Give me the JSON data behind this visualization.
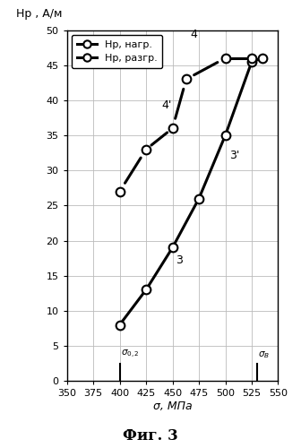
{
  "title_y": "Нр , А/м",
  "xlabel": "σ, МПа",
  "figcaption": "Фиг. 3",
  "xlim": [
    350,
    550
  ],
  "ylim": [
    0,
    50
  ],
  "xticks": [
    350,
    375,
    400,
    425,
    450,
    475,
    500,
    525,
    550
  ],
  "yticks": [
    0,
    5,
    10,
    15,
    20,
    25,
    30,
    35,
    40,
    45,
    50
  ],
  "loading_x": [
    400,
    425,
    450,
    475,
    500,
    525,
    535
  ],
  "loading_y": [
    8,
    13,
    19,
    26,
    35,
    45.5,
    46
  ],
  "unloading_x": [
    400,
    425,
    450,
    463,
    500,
    525
  ],
  "unloading_y": [
    27,
    33,
    36,
    43,
    46,
    46
  ],
  "sigma_02_x": 400,
  "sigma_B_x": 530,
  "label_loading": "Нр, нагр.",
  "label_unloading": "Нр, разгр.",
  "ann3_x": 453,
  "ann3_y": 18,
  "ann3p_x": 504,
  "ann3p_y": 33,
  "ann4_x": 467,
  "ann4_y": 48.5,
  "ann4p_x": 440,
  "ann4p_y": 38.5,
  "line_color": "#000000",
  "bg_color": "#ffffff",
  "grid_color": "#bbbbbb",
  "marker_fc": "white",
  "marker_ec": "black",
  "lw": 2.2,
  "ms": 7
}
